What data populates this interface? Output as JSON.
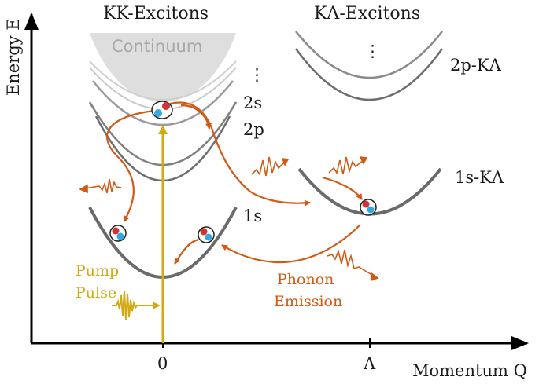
{
  "titles": {
    "kk": "KK-Excitons",
    "kl": "KΛ-Excitons"
  },
  "axes": {
    "y_label": "Energy  E",
    "x_label": "Momentum Q",
    "tick_zero": "0",
    "tick_lambda": "Λ"
  },
  "kk_levels": {
    "continuum": "Continuum",
    "dots": "⋮",
    "s2": "2s",
    "p2": "2p",
    "s1": "1s"
  },
  "kl_levels": {
    "dots": "⋮",
    "p2": "2p-KΛ",
    "s1": "1s-KΛ"
  },
  "annotations": {
    "pump_line1": "Pump",
    "pump_line2": "Pulse",
    "phonon_line1": "Phonon",
    "phonon_line2": "Emission"
  },
  "colors": {
    "phonon_orange": "#d25a14",
    "pump_yellow": "#d2aa14",
    "electron_red": "#d23232",
    "hole_blue": "#32aadc",
    "continuum_gray": "#dedede"
  }
}
